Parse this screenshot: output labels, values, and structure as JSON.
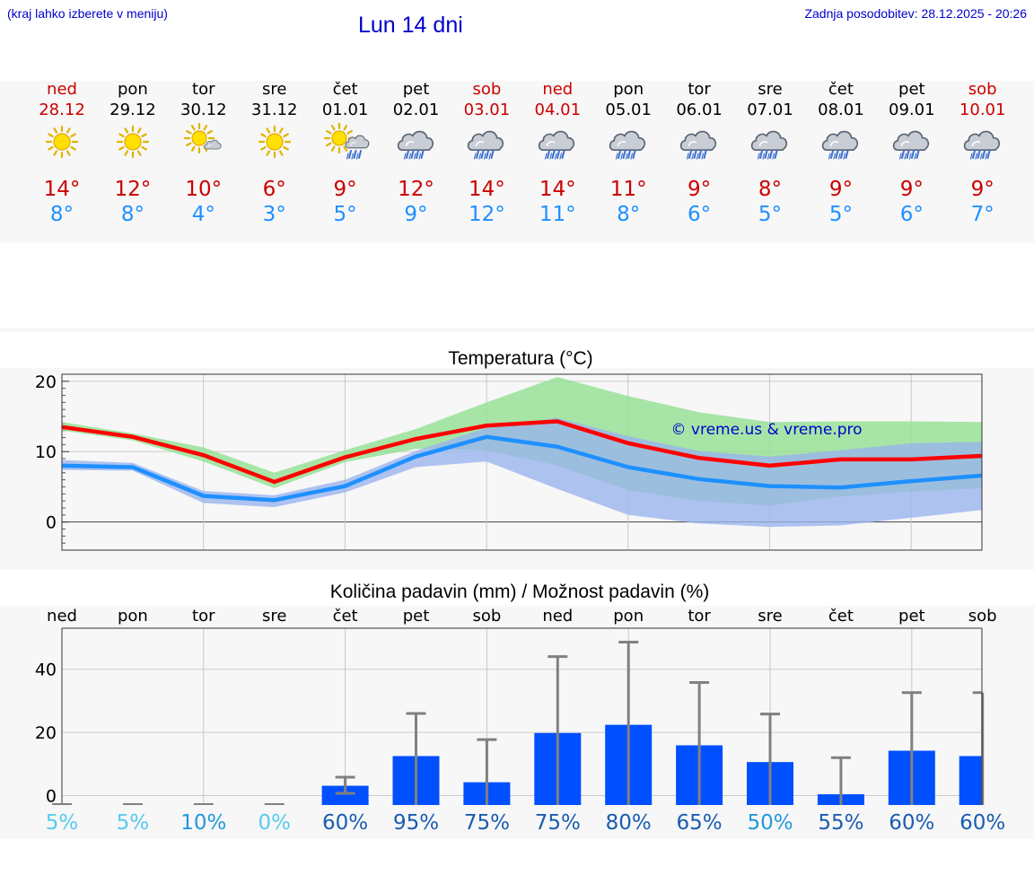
{
  "header": {
    "left_note": "(kraj lahko izberete v meniju)",
    "title": "Lun 14 dni",
    "updated": "Zadnja posodobitev: 28.12.2025 - 20:26"
  },
  "colors": {
    "max": "#cc0000",
    "min": "#1e90ff",
    "bar": "#0050ff",
    "weekend": "#cc0000"
  },
  "days": [
    {
      "name": "ned",
      "date": "28.12",
      "weekend": true,
      "icon": "sun-icon",
      "tmax": "14°",
      "tmin": "8°"
    },
    {
      "name": "pon",
      "date": "29.12",
      "weekend": false,
      "icon": "sun-icon",
      "tmax": "12°",
      "tmin": "8°"
    },
    {
      "name": "tor",
      "date": "30.12",
      "weekend": false,
      "icon": "sun-cloud-icon",
      "tmax": "10°",
      "tmin": "4°"
    },
    {
      "name": "sre",
      "date": "31.12",
      "weekend": false,
      "icon": "sun-icon",
      "tmax": "6°",
      "tmin": "3°"
    },
    {
      "name": "čet",
      "date": "01.01",
      "weekend": false,
      "icon": "sun-rain-icon",
      "tmax": "9°",
      "tmin": "5°"
    },
    {
      "name": "pet",
      "date": "02.01",
      "weekend": false,
      "icon": "rain-icon",
      "tmax": "12°",
      "tmin": "9°"
    },
    {
      "name": "sob",
      "date": "03.01",
      "weekend": true,
      "icon": "rain-icon",
      "tmax": "14°",
      "tmin": "12°"
    },
    {
      "name": "ned",
      "date": "04.01",
      "weekend": true,
      "icon": "rain-icon",
      "tmax": "14°",
      "tmin": "11°"
    },
    {
      "name": "pon",
      "date": "05.01",
      "weekend": false,
      "icon": "rain-icon",
      "tmax": "11°",
      "tmin": "8°"
    },
    {
      "name": "tor",
      "date": "06.01",
      "weekend": false,
      "icon": "rain-icon",
      "tmax": "9°",
      "tmin": "6°"
    },
    {
      "name": "sre",
      "date": "07.01",
      "weekend": false,
      "icon": "rain-icon",
      "tmax": "8°",
      "tmin": "5°"
    },
    {
      "name": "čet",
      "date": "08.01",
      "weekend": false,
      "icon": "rain-icon",
      "tmax": "9°",
      "tmin": "5°"
    },
    {
      "name": "pet",
      "date": "09.01",
      "weekend": false,
      "icon": "rain-icon",
      "tmax": "9°",
      "tmin": "6°"
    },
    {
      "name": "sob",
      "date": "10.01",
      "weekend": true,
      "icon": "rain-icon",
      "tmax": "9°",
      "tmin": "7°"
    }
  ],
  "chart_data": [
    {
      "type": "line",
      "title": "Temperatura (°C)",
      "watermark": "© vreme.us & vreme.pro",
      "ylim": [
        -4,
        21
      ],
      "yticks": [
        0,
        10,
        20
      ],
      "x": [
        0,
        1,
        2,
        3,
        4,
        5,
        6,
        7,
        8,
        9,
        10,
        11,
        12,
        13
      ],
      "series": [
        {
          "name": "max",
          "color": "#ff0000",
          "values": [
            13.5,
            12.1,
            9.5,
            5.7,
            9.2,
            11.8,
            13.7,
            14.3,
            11.2,
            9.1,
            8.0,
            8.9,
            8.9,
            9.4
          ]
        },
        {
          "name": "min",
          "color": "#1e90ff",
          "values": [
            8.0,
            7.8,
            3.7,
            3.1,
            5.1,
            9.3,
            12.1,
            10.7,
            7.8,
            6.1,
            5.1,
            4.9,
            5.8,
            6.6
          ]
        }
      ],
      "bands": [
        {
          "name": "max-range",
          "color": "#90e090",
          "upper": [
            14.2,
            12.6,
            10.6,
            7.0,
            10.2,
            13.2,
            17.0,
            20.6,
            17.9,
            15.6,
            14.2,
            14.3,
            14.3,
            14.2
          ],
          "lower": [
            13.0,
            11.6,
            8.6,
            4.8,
            8.5,
            10.4,
            10.2,
            8.0,
            4.5,
            3.0,
            2.3,
            3.6,
            4.3,
            4.8
          ]
        },
        {
          "name": "min-range",
          "color": "#9ab4ee",
          "upper": [
            8.8,
            8.4,
            4.4,
            3.8,
            6.0,
            10.1,
            13.4,
            14.8,
            12.2,
            10.1,
            9.3,
            10.2,
            11.2,
            11.4
          ],
          "lower": [
            7.4,
            7.3,
            2.7,
            2.1,
            4.2,
            7.8,
            8.6,
            4.7,
            1.0,
            -0.2,
            -0.7,
            -0.5,
            0.6,
            1.7
          ]
        }
      ]
    },
    {
      "type": "bar",
      "title": "Količina padavin (mm) / Možnost padavin (%)",
      "ylim": [
        -3,
        53
      ],
      "yticks": [
        0,
        20,
        40
      ],
      "categories": [
        "ned",
        "pon",
        "tor",
        "sre",
        "čet",
        "pet",
        "sob",
        "ned",
        "pon",
        "tor",
        "sre",
        "čet",
        "pet",
        "sob"
      ],
      "values": [
        0,
        0,
        0,
        0,
        3.1,
        12.5,
        4.2,
        19.8,
        22.4,
        15.9,
        10.6,
        0.4,
        14.2,
        12.5
      ],
      "error_max": [
        0,
        0,
        0,
        0,
        5.8,
        26.0,
        17.7,
        44.0,
        48.6,
        35.8,
        25.8,
        12.0,
        32.6,
        32.6
      ],
      "error_min": [
        0,
        0,
        0,
        0,
        0.7,
        0,
        0,
        0,
        0,
        0,
        0,
        0,
        0,
        0
      ],
      "probabilities": [
        "5%",
        "5%",
        "10%",
        "0%",
        "60%",
        "95%",
        "75%",
        "75%",
        "80%",
        "65%",
        "50%",
        "55%",
        "60%",
        "60%"
      ],
      "probability_colors": [
        "#55ccee",
        "#55ccee",
        "#2299dd",
        "#55ccee",
        "#1a5cb0",
        "#1a5cb0",
        "#1a5cb0",
        "#1a5cb0",
        "#1a5cb0",
        "#1a5cb0",
        "#2299dd",
        "#1a5cb0",
        "#1a5cb0",
        "#1a5cb0"
      ]
    }
  ]
}
